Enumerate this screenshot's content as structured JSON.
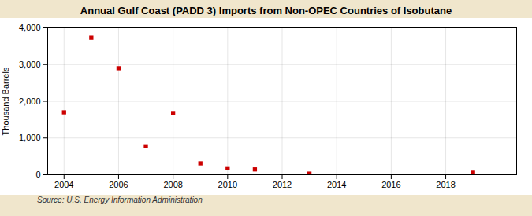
{
  "chart_data": {
    "type": "scatter",
    "title": "Annual Gulf Coast (PADD 3) Imports from Non-OPEC Countries of Isobutane",
    "ylabel": "Thousand Barrels",
    "source": "Source: U.S. Energy Information Administration",
    "x": [
      2004,
      2005,
      2006,
      2007,
      2008,
      2009,
      2010,
      2011,
      2013,
      2019
    ],
    "values": [
      1700,
      3730,
      2900,
      775,
      1680,
      310,
      175,
      145,
      30,
      55
    ],
    "color": "#cc0000",
    "marker": "square",
    "xlim": [
      2003.4,
      2020.6
    ],
    "xticks": [
      2004,
      2006,
      2008,
      2010,
      2012,
      2014,
      2016,
      2018
    ],
    "ylim": [
      0,
      4000
    ],
    "yticks": [
      0,
      {
        "value": 1000,
        "label": "1,000"
      },
      {
        "value": 2000,
        "label": "2,000"
      },
      {
        "value": 3000,
        "label": "3,000"
      },
      {
        "value": 4000,
        "label": "4,000"
      }
    ],
    "grid": true
  }
}
